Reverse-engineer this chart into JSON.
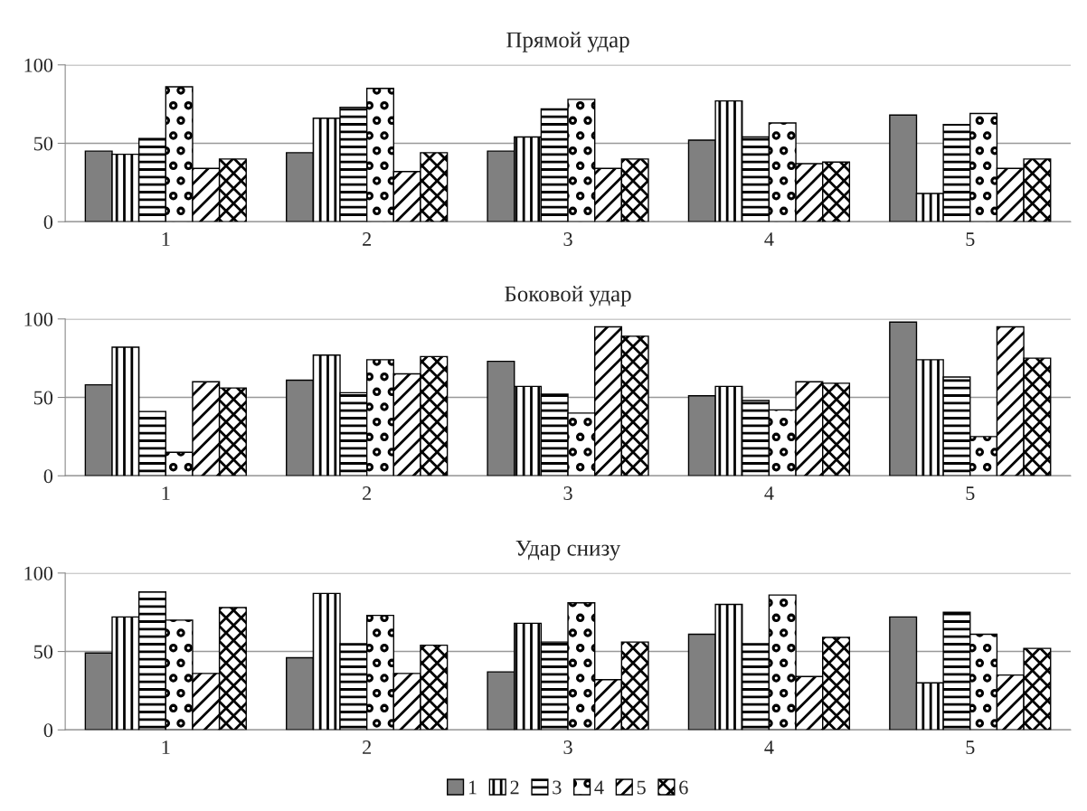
{
  "chart_data": [
    {
      "type": "bar",
      "title": "Прямой удар",
      "categories": [
        "1",
        "2",
        "3",
        "4",
        "5"
      ],
      "ylim": [
        0,
        100
      ],
      "yticks": [
        0,
        50,
        100
      ],
      "grid": "y",
      "series": [
        {
          "color": "#808080",
          "values": [
            45,
            44,
            45,
            52,
            68
          ]
        },
        {
          "color": "#000000",
          "values": [
            43,
            66,
            54,
            77,
            18
          ]
        },
        {
          "color": "#000000",
          "values": [
            53,
            73,
            72,
            54,
            62
          ]
        },
        {
          "color": "#000000",
          "values": [
            86,
            85,
            78,
            63,
            69
          ]
        },
        {
          "color": "#000000",
          "values": [
            34,
            32,
            34,
            37,
            34
          ]
        },
        {
          "color": "#000000",
          "values": [
            40,
            44,
            40,
            38,
            40
          ]
        }
      ]
    },
    {
      "type": "bar",
      "title": "Боковой удар",
      "categories": [
        "1",
        "2",
        "3",
        "4",
        "5"
      ],
      "ylim": [
        0,
        100
      ],
      "yticks": [
        0,
        50,
        100
      ],
      "grid": "y",
      "series": [
        {
          "color": "#808080",
          "values": [
            58,
            61,
            73,
            51,
            98
          ]
        },
        {
          "color": "#000000",
          "values": [
            82,
            77,
            57,
            57,
            74
          ]
        },
        {
          "color": "#000000",
          "values": [
            41,
            53,
            52,
            48,
            63
          ]
        },
        {
          "color": "#000000",
          "values": [
            15,
            74,
            40,
            42,
            25
          ]
        },
        {
          "color": "#000000",
          "values": [
            60,
            65,
            95,
            60,
            95
          ]
        },
        {
          "color": "#000000",
          "values": [
            56,
            76,
            89,
            59,
            75
          ]
        }
      ]
    },
    {
      "type": "bar",
      "title": "Удар снизу",
      "categories": [
        "1",
        "2",
        "3",
        "4",
        "5"
      ],
      "ylim": [
        0,
        100
      ],
      "yticks": [
        0,
        50,
        100
      ],
      "grid": "y",
      "legend": "bottom",
      "series": [
        {
          "name": "1",
          "color": "#808080",
          "values": [
            49,
            46,
            37,
            61,
            72
          ]
        },
        {
          "name": "2",
          "color": "#000000",
          "values": [
            72,
            87,
            68,
            80,
            30
          ]
        },
        {
          "name": "3",
          "color": "#000000",
          "values": [
            88,
            55,
            56,
            55,
            75
          ]
        },
        {
          "name": "4",
          "color": "#000000",
          "values": [
            70,
            73,
            81,
            86,
            61
          ]
        },
        {
          "name": "5",
          "color": "#000000",
          "values": [
            36,
            36,
            32,
            34,
            35
          ]
        },
        {
          "name": "6",
          "color": "#000000",
          "values": [
            78,
            54,
            56,
            59,
            52
          ]
        }
      ]
    }
  ]
}
